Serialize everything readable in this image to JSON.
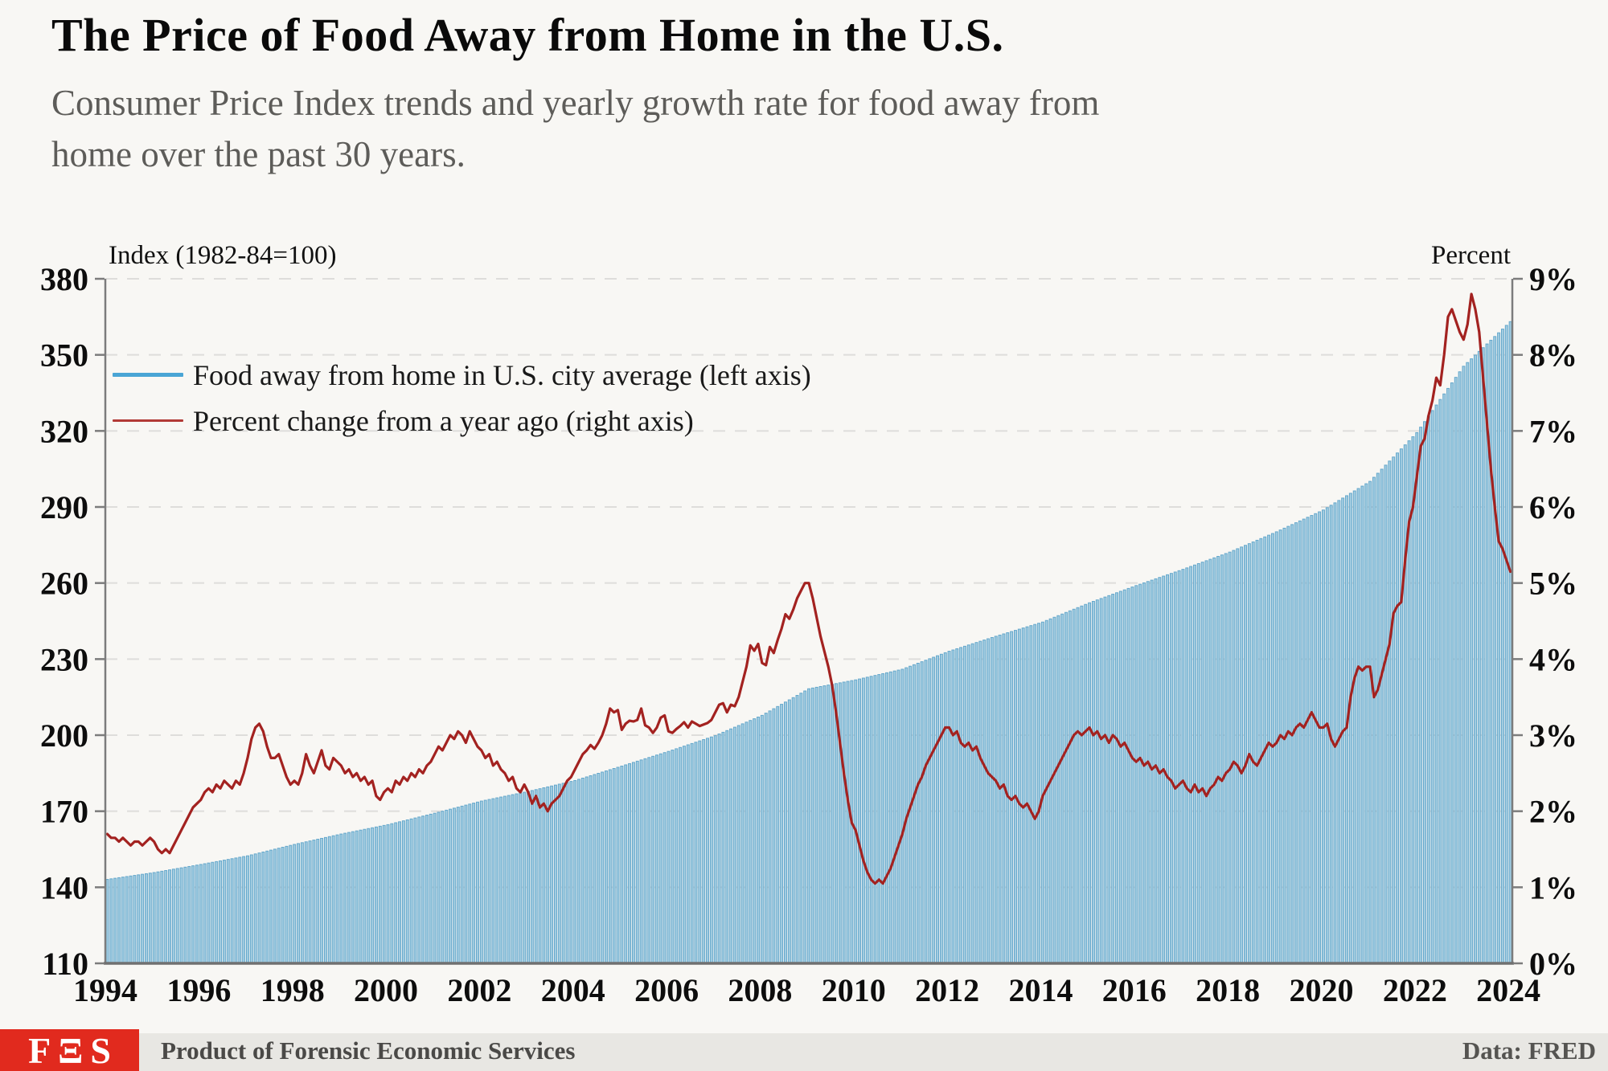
{
  "header": {
    "title": "The Price of Food Away from Home in the U.S.",
    "subtitle_lines": [
      "Consumer Price Index trends and yearly growth rate for food away from",
      "home over the past 30 years."
    ]
  },
  "footer": {
    "logo_text": "FΞS",
    "logo_color": "#e12a1e",
    "product_label": "Product of Forensic Economic Services",
    "source_label": "Data: FRED"
  },
  "chart_data": {
    "type": "bar+line (dual axis)",
    "left_axis": {
      "label": "Index (1982-84=100)",
      "range": [
        110,
        380
      ],
      "ticks": [
        110,
        140,
        170,
        200,
        230,
        260,
        290,
        320,
        350,
        380
      ]
    },
    "right_axis": {
      "label": "Percent",
      "range": [
        0,
        9
      ],
      "tick_labels": [
        "0%",
        "1%",
        "2%",
        "3%",
        "4%",
        "5%",
        "6%",
        "7%",
        "8%",
        "9%"
      ]
    },
    "x_axis": {
      "range": [
        1994,
        2024.083
      ],
      "ticks": [
        1994,
        1996,
        1998,
        2000,
        2002,
        2004,
        2006,
        2008,
        2010,
        2012,
        2014,
        2016,
        2018,
        2020,
        2022,
        2024
      ]
    },
    "legend": [
      {
        "label": "Food away from home in U.S. city average (left axis)",
        "color": "#4aa5d5"
      },
      {
        "label": "Percent change from a year ago (right axis)",
        "color": "#b23a36"
      }
    ],
    "series": {
      "index": {
        "name": "Food away from home in U.S. city average",
        "axis": "left",
        "fill": "#a3cde1",
        "stroke": "#64a7cb",
        "start_year": 1994,
        "january_anchor_values": [
          143.1,
          145.8,
          149.0,
          152.4,
          156.9,
          161.0,
          164.7,
          169.2,
          174.0,
          177.8,
          182.1,
          187.8,
          193.6,
          199.8,
          207.8,
          218.3,
          221.8,
          226.0,
          233.1,
          239.0,
          244.6,
          252.2,
          259.0,
          265.4,
          272.2,
          280.2,
          288.8,
          300.1,
          319.3,
          345.5,
          363.1
        ]
      },
      "pct": {
        "name": "Percent change from a year ago",
        "axis": "right",
        "color": "#a32220",
        "start": "1994-01",
        "monthly_yoy_percent": [
          1.7,
          1.65,
          1.65,
          1.6,
          1.65,
          1.6,
          1.55,
          1.6,
          1.6,
          1.55,
          1.6,
          1.65,
          1.6,
          1.5,
          1.45,
          1.5,
          1.45,
          1.55,
          1.65,
          1.75,
          1.85,
          1.95,
          2.05,
          2.1,
          2.15,
          2.25,
          2.3,
          2.25,
          2.35,
          2.3,
          2.4,
          2.35,
          2.3,
          2.4,
          2.35,
          2.5,
          2.7,
          2.95,
          3.1,
          3.15,
          3.05,
          2.85,
          2.7,
          2.7,
          2.75,
          2.6,
          2.45,
          2.35,
          2.4,
          2.35,
          2.5,
          2.75,
          2.6,
          2.5,
          2.65,
          2.8,
          2.6,
          2.55,
          2.7,
          2.65,
          2.6,
          2.5,
          2.55,
          2.45,
          2.5,
          2.4,
          2.45,
          2.35,
          2.4,
          2.2,
          2.15,
          2.25,
          2.3,
          2.25,
          2.4,
          2.35,
          2.45,
          2.4,
          2.5,
          2.45,
          2.55,
          2.5,
          2.6,
          2.65,
          2.75,
          2.85,
          2.8,
          2.9,
          3.0,
          2.95,
          3.05,
          3.0,
          2.9,
          3.05,
          2.95,
          2.85,
          2.8,
          2.7,
          2.75,
          2.6,
          2.65,
          2.55,
          2.5,
          2.4,
          2.45,
          2.3,
          2.25,
          2.35,
          2.25,
          2.1,
          2.2,
          2.05,
          2.1,
          2.0,
          2.1,
          2.15,
          2.2,
          2.3,
          2.4,
          2.45,
          2.55,
          2.65,
          2.75,
          2.8,
          2.87,
          2.82,
          2.9,
          3.0,
          3.15,
          3.35,
          3.3,
          3.33,
          3.07,
          3.15,
          3.19,
          3.18,
          3.2,
          3.35,
          3.13,
          3.1,
          3.03,
          3.1,
          3.23,
          3.26,
          3.05,
          3.03,
          3.08,
          3.12,
          3.17,
          3.1,
          3.18,
          3.15,
          3.12,
          3.14,
          3.16,
          3.2,
          3.3,
          3.4,
          3.42,
          3.3,
          3.4,
          3.38,
          3.5,
          3.7,
          3.9,
          4.18,
          4.11,
          4.2,
          3.95,
          3.92,
          4.16,
          4.08,
          4.25,
          4.4,
          4.59,
          4.53,
          4.65,
          4.8,
          4.9,
          5.0,
          5.0,
          4.8,
          4.55,
          4.3,
          4.1,
          3.9,
          3.65,
          3.3,
          2.9,
          2.5,
          2.15,
          1.85,
          1.75,
          1.55,
          1.35,
          1.2,
          1.1,
          1.05,
          1.1,
          1.05,
          1.15,
          1.25,
          1.4,
          1.55,
          1.7,
          1.9,
          2.05,
          2.2,
          2.35,
          2.45,
          2.6,
          2.7,
          2.8,
          2.9,
          3.0,
          3.1,
          3.1,
          3.0,
          3.05,
          2.9,
          2.85,
          2.9,
          2.8,
          2.85,
          2.7,
          2.6,
          2.5,
          2.45,
          2.4,
          2.3,
          2.35,
          2.2,
          2.15,
          2.2,
          2.1,
          2.05,
          2.1,
          2.0,
          1.9,
          2.0,
          2.2,
          2.3,
          2.4,
          2.5,
          2.6,
          2.7,
          2.8,
          2.9,
          3.0,
          3.05,
          3.0,
          3.05,
          3.1,
          3.0,
          3.05,
          2.95,
          3.0,
          2.9,
          3.0,
          2.95,
          2.85,
          2.9,
          2.8,
          2.7,
          2.65,
          2.7,
          2.6,
          2.65,
          2.55,
          2.6,
          2.5,
          2.55,
          2.45,
          2.4,
          2.3,
          2.35,
          2.4,
          2.3,
          2.25,
          2.35,
          2.25,
          2.3,
          2.2,
          2.3,
          2.35,
          2.45,
          2.4,
          2.5,
          2.55,
          2.65,
          2.6,
          2.5,
          2.6,
          2.75,
          2.65,
          2.6,
          2.7,
          2.8,
          2.9,
          2.85,
          2.9,
          3.0,
          2.95,
          3.05,
          3.0,
          3.1,
          3.15,
          3.1,
          3.2,
          3.3,
          3.2,
          3.1,
          3.1,
          3.15,
          2.95,
          2.85,
          2.95,
          3.05,
          3.1,
          3.5,
          3.75,
          3.9,
          3.85,
          3.9,
          3.9,
          3.5,
          3.6,
          3.8,
          4.0,
          4.2,
          4.6,
          4.7,
          4.75,
          5.3,
          5.8,
          6.0,
          6.4,
          6.8,
          6.9,
          7.2,
          7.4,
          7.7,
          7.6,
          8.0,
          8.5,
          8.6,
          8.45,
          8.3,
          8.2,
          8.4,
          8.8,
          8.6,
          8.3,
          7.7,
          7.1,
          6.5,
          6.0,
          5.55,
          5.45,
          5.3,
          5.15
        ]
      }
    },
    "grid": "horizontal dashed",
    "legend_position": "upper-left inside plot"
  }
}
